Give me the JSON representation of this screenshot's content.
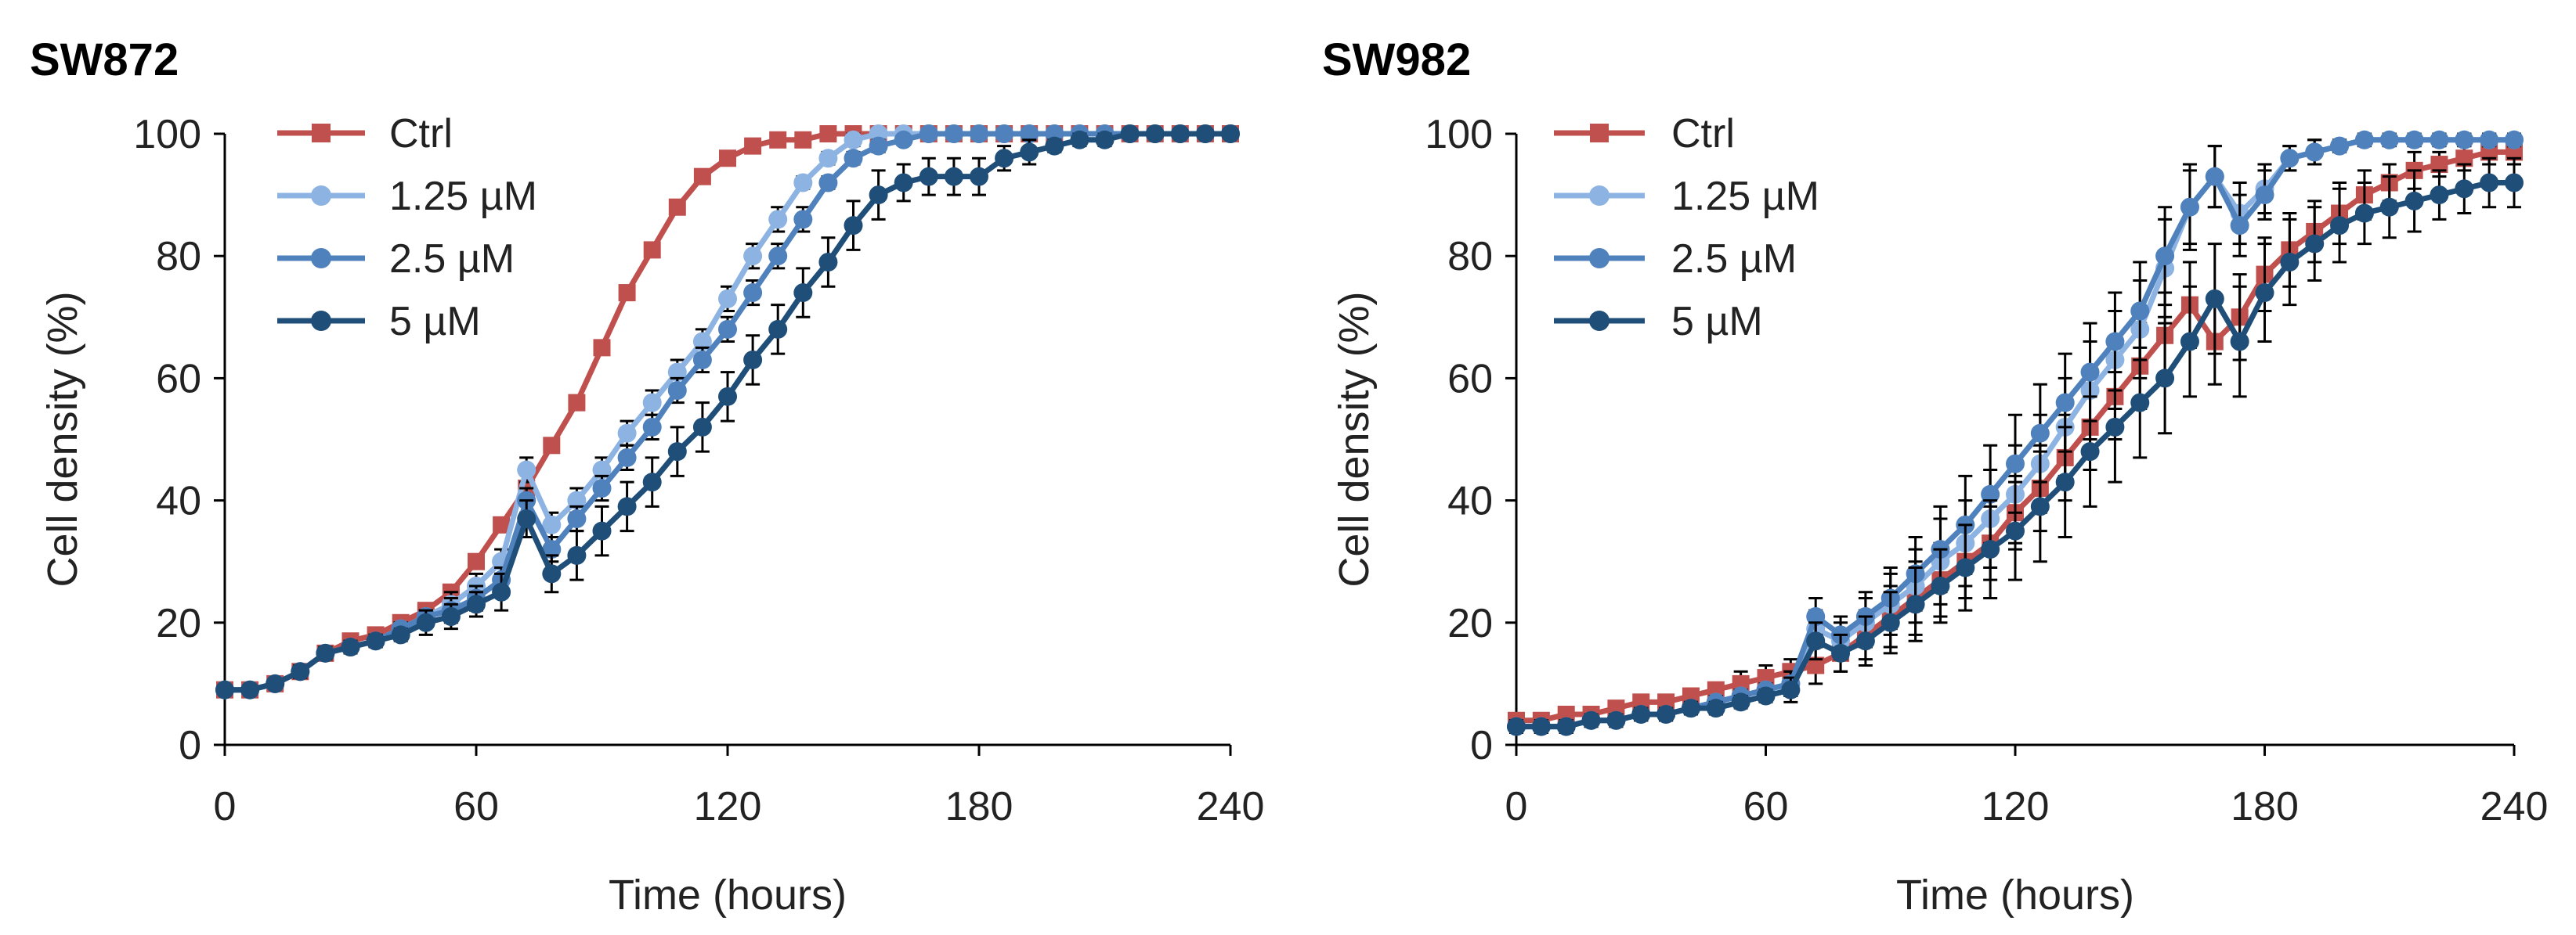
{
  "chart_data": [
    {
      "type": "line",
      "title": "SW872",
      "xlabel": "Time (hours)",
      "ylabel": "Cell density (%)",
      "xlim": [
        0,
        240
      ],
      "ylim": [
        0,
        100
      ],
      "xticks": [
        "0",
        "60",
        "120",
        "180",
        "240"
      ],
      "yticks": [
        "0",
        "20",
        "40",
        "60",
        "80",
        "100"
      ],
      "legend_position": "top-left",
      "series": [
        {
          "name": "Ctrl",
          "color": "#c0504d",
          "marker": "square",
          "x": [
            0,
            6,
            12,
            18,
            24,
            30,
            36,
            42,
            48,
            54,
            60,
            66,
            72,
            78,
            84,
            90,
            96,
            102,
            108,
            114,
            120,
            126,
            132,
            138,
            144,
            150,
            156,
            162,
            168,
            174,
            180,
            186,
            192,
            198,
            204,
            210,
            216,
            222,
            228,
            234,
            240
          ],
          "y": [
            9,
            9,
            10,
            12,
            15,
            17,
            18,
            20,
            22,
            25,
            30,
            36,
            42,
            49,
            56,
            65,
            74,
            81,
            88,
            93,
            96,
            98,
            99,
            99,
            100,
            100,
            100,
            100,
            100,
            100,
            100,
            100,
            100,
            100,
            100,
            100,
            100,
            100,
            100,
            100,
            100
          ],
          "err": [
            0,
            0,
            0,
            1,
            1,
            1,
            1,
            1,
            1,
            1,
            1,
            1,
            1,
            1,
            1,
            1,
            1,
            1,
            1,
            1,
            1,
            0,
            0,
            0,
            0,
            0,
            0,
            0,
            0,
            0,
            0,
            0,
            0,
            0,
            0,
            0,
            0,
            0,
            0,
            0,
            0
          ]
        },
        {
          "name": "1.25 µM",
          "color": "#8db3e2",
          "marker": "circle",
          "x": [
            0,
            6,
            12,
            18,
            24,
            30,
            36,
            42,
            48,
            54,
            60,
            66,
            72,
            78,
            84,
            90,
            96,
            102,
            108,
            114,
            120,
            126,
            132,
            138,
            144,
            150,
            156,
            162,
            168,
            174,
            180,
            186,
            192,
            198,
            204,
            210,
            216,
            222,
            228,
            234,
            240
          ],
          "y": [
            9,
            9,
            10,
            12,
            15,
            16,
            17,
            19,
            21,
            23,
            26,
            30,
            45,
            36,
            40,
            45,
            51,
            56,
            61,
            66,
            73,
            80,
            86,
            92,
            96,
            99,
            100,
            100,
            100,
            100,
            100,
            100,
            100,
            100,
            100,
            100,
            100,
            100,
            100,
            100,
            100
          ],
          "err": [
            0,
            0,
            0,
            1,
            1,
            1,
            1,
            1,
            1,
            2,
            2,
            2,
            2,
            2,
            2,
            2,
            2,
            2,
            2,
            2,
            2,
            2,
            2,
            1,
            1,
            1,
            0,
            0,
            0,
            0,
            0,
            0,
            0,
            0,
            0,
            0,
            0,
            0,
            0,
            0,
            0
          ]
        },
        {
          "name": "2.5 µM",
          "color": "#4f81bd",
          "marker": "circle",
          "x": [
            0,
            6,
            12,
            18,
            24,
            30,
            36,
            42,
            48,
            54,
            60,
            66,
            72,
            78,
            84,
            90,
            96,
            102,
            108,
            114,
            120,
            126,
            132,
            138,
            144,
            150,
            156,
            162,
            168,
            174,
            180,
            186,
            192,
            198,
            204,
            210,
            216,
            222,
            228,
            234,
            240
          ],
          "y": [
            9,
            9,
            10,
            12,
            15,
            16,
            17,
            19,
            21,
            22,
            24,
            27,
            40,
            32,
            37,
            42,
            47,
            52,
            58,
            63,
            68,
            74,
            80,
            86,
            92,
            96,
            98,
            99,
            100,
            100,
            100,
            100,
            100,
            100,
            100,
            100,
            100,
            100,
            100,
            100,
            100
          ],
          "err": [
            0,
            0,
            0,
            1,
            1,
            1,
            1,
            1,
            1,
            2,
            2,
            2,
            2,
            2,
            2,
            2,
            2,
            2,
            2,
            2,
            2,
            2,
            2,
            2,
            1,
            1,
            1,
            0,
            0,
            0,
            0,
            0,
            0,
            0,
            0,
            0,
            0,
            0,
            0,
            0,
            0
          ]
        },
        {
          "name": "5 µM",
          "color": "#1f4e79",
          "marker": "circle",
          "x": [
            0,
            6,
            12,
            18,
            24,
            30,
            36,
            42,
            48,
            54,
            60,
            66,
            72,
            78,
            84,
            90,
            96,
            102,
            108,
            114,
            120,
            126,
            132,
            138,
            144,
            150,
            156,
            162,
            168,
            174,
            180,
            186,
            192,
            198,
            204,
            210,
            216,
            222,
            228,
            234,
            240
          ],
          "y": [
            9,
            9,
            10,
            12,
            15,
            16,
            17,
            18,
            20,
            21,
            23,
            25,
            37,
            28,
            31,
            35,
            39,
            43,
            48,
            52,
            57,
            63,
            68,
            74,
            79,
            85,
            90,
            92,
            93,
            93,
            93,
            96,
            97,
            98,
            99,
            99,
            100,
            100,
            100,
            100,
            100
          ],
          "err": [
            0,
            0,
            0,
            1,
            1,
            1,
            1,
            1,
            2,
            2,
            2,
            3,
            3,
            3,
            4,
            4,
            4,
            4,
            4,
            4,
            4,
            4,
            4,
            4,
            4,
            4,
            4,
            3,
            3,
            3,
            3,
            2,
            2,
            1,
            1,
            1,
            0,
            0,
            0,
            0,
            0
          ]
        }
      ]
    },
    {
      "type": "line",
      "title": "SW982",
      "xlabel": "Time (hours)",
      "ylabel": "Cell density (%)",
      "xlim": [
        0,
        240
      ],
      "ylim": [
        0,
        100
      ],
      "xticks": [
        "0",
        "60",
        "120",
        "180",
        "240"
      ],
      "yticks": [
        "0",
        "20",
        "40",
        "60",
        "80",
        "100"
      ],
      "legend_position": "top-left",
      "series": [
        {
          "name": "Ctrl",
          "color": "#c0504d",
          "marker": "square",
          "x": [
            0,
            6,
            12,
            18,
            24,
            30,
            36,
            42,
            48,
            54,
            60,
            66,
            72,
            78,
            84,
            90,
            96,
            102,
            108,
            114,
            120,
            126,
            132,
            138,
            144,
            150,
            156,
            162,
            168,
            174,
            180,
            186,
            192,
            198,
            204,
            210,
            216,
            222,
            228,
            234,
            240
          ],
          "y": [
            4,
            4,
            5,
            5,
            6,
            7,
            7,
            8,
            9,
            10,
            11,
            12,
            13,
            15,
            18,
            21,
            24,
            27,
            30,
            33,
            38,
            42,
            47,
            52,
            57,
            62,
            67,
            72,
            66,
            70,
            77,
            81,
            84,
            87,
            90,
            92,
            94,
            95,
            96,
            97,
            97
          ],
          "err": [
            1,
            1,
            1,
            1,
            1,
            1,
            1,
            1,
            1,
            2,
            2,
            2,
            3,
            3,
            4,
            5,
            6,
            6,
            6,
            6,
            6,
            7,
            7,
            7,
            7,
            7,
            7,
            7,
            7,
            7,
            6,
            6,
            5,
            5,
            4,
            3,
            3,
            2,
            2,
            2,
            2
          ]
        },
        {
          "name": "1.25 µM",
          "color": "#8db3e2",
          "marker": "circle",
          "x": [
            0,
            6,
            12,
            18,
            24,
            30,
            36,
            42,
            48,
            54,
            60,
            66,
            72,
            78,
            84,
            90,
            96,
            102,
            108,
            114,
            120,
            126,
            132,
            138,
            144,
            150,
            156,
            162,
            168,
            174,
            180,
            186,
            192,
            198,
            204,
            210,
            216,
            222,
            228,
            234,
            240
          ],
          "y": [
            3,
            3,
            3,
            4,
            4,
            5,
            5,
            6,
            7,
            8,
            9,
            10,
            19,
            17,
            20,
            23,
            26,
            30,
            33,
            37,
            41,
            46,
            52,
            58,
            63,
            68,
            78,
            88,
            93,
            87,
            91,
            96,
            97,
            98,
            99,
            99,
            99,
            99,
            99,
            99,
            99
          ],
          "err": [
            1,
            1,
            1,
            1,
            1,
            1,
            1,
            1,
            1,
            1,
            1,
            2,
            3,
            3,
            4,
            5,
            6,
            7,
            7,
            8,
            8,
            8,
            8,
            8,
            8,
            8,
            8,
            6,
            5,
            5,
            4,
            2,
            2,
            1,
            1,
            1,
            1,
            1,
            1,
            1,
            1
          ]
        },
        {
          "name": "2.5 µM",
          "color": "#4f81bd",
          "marker": "circle",
          "x": [
            0,
            6,
            12,
            18,
            24,
            30,
            36,
            42,
            48,
            54,
            60,
            66,
            72,
            78,
            84,
            90,
            96,
            102,
            108,
            114,
            120,
            126,
            132,
            138,
            144,
            150,
            156,
            162,
            168,
            174,
            180,
            186,
            192,
            198,
            204,
            210,
            216,
            222,
            228,
            234,
            240
          ],
          "y": [
            3,
            3,
            3,
            4,
            4,
            5,
            5,
            6,
            7,
            8,
            9,
            10,
            21,
            18,
            21,
            24,
            28,
            32,
            36,
            41,
            46,
            51,
            56,
            61,
            66,
            71,
            80,
            88,
            93,
            85,
            90,
            96,
            97,
            98,
            99,
            99,
            99,
            99,
            99,
            99,
            99
          ],
          "err": [
            1,
            1,
            1,
            1,
            1,
            1,
            1,
            1,
            1,
            1,
            1,
            2,
            3,
            3,
            4,
            5,
            6,
            7,
            8,
            8,
            8,
            8,
            8,
            8,
            8,
            8,
            8,
            7,
            5,
            5,
            4,
            2,
            2,
            1,
            1,
            1,
            1,
            1,
            1,
            1,
            1
          ]
        },
        {
          "name": "5 µM",
          "color": "#1f4e79",
          "marker": "circle",
          "x": [
            0,
            6,
            12,
            18,
            24,
            30,
            36,
            42,
            48,
            54,
            60,
            66,
            72,
            78,
            84,
            90,
            96,
            102,
            108,
            114,
            120,
            126,
            132,
            138,
            144,
            150,
            156,
            162,
            168,
            174,
            180,
            186,
            192,
            198,
            204,
            210,
            216,
            222,
            228,
            234,
            240
          ],
          "y": [
            3,
            3,
            3,
            4,
            4,
            5,
            5,
            6,
            6,
            7,
            8,
            9,
            17,
            15,
            17,
            20,
            23,
            26,
            29,
            32,
            35,
            39,
            43,
            48,
            52,
            56,
            60,
            66,
            73,
            66,
            74,
            79,
            82,
            85,
            87,
            88,
            89,
            90,
            91,
            92,
            92
          ],
          "err": [
            1,
            1,
            1,
            1,
            1,
            1,
            1,
            1,
            1,
            1,
            1,
            2,
            3,
            3,
            4,
            5,
            6,
            6,
            7,
            8,
            8,
            9,
            9,
            9,
            9,
            9,
            9,
            9,
            9,
            9,
            8,
            7,
            6,
            6,
            5,
            5,
            5,
            4,
            4,
            4,
            4
          ]
        }
      ]
    }
  ]
}
